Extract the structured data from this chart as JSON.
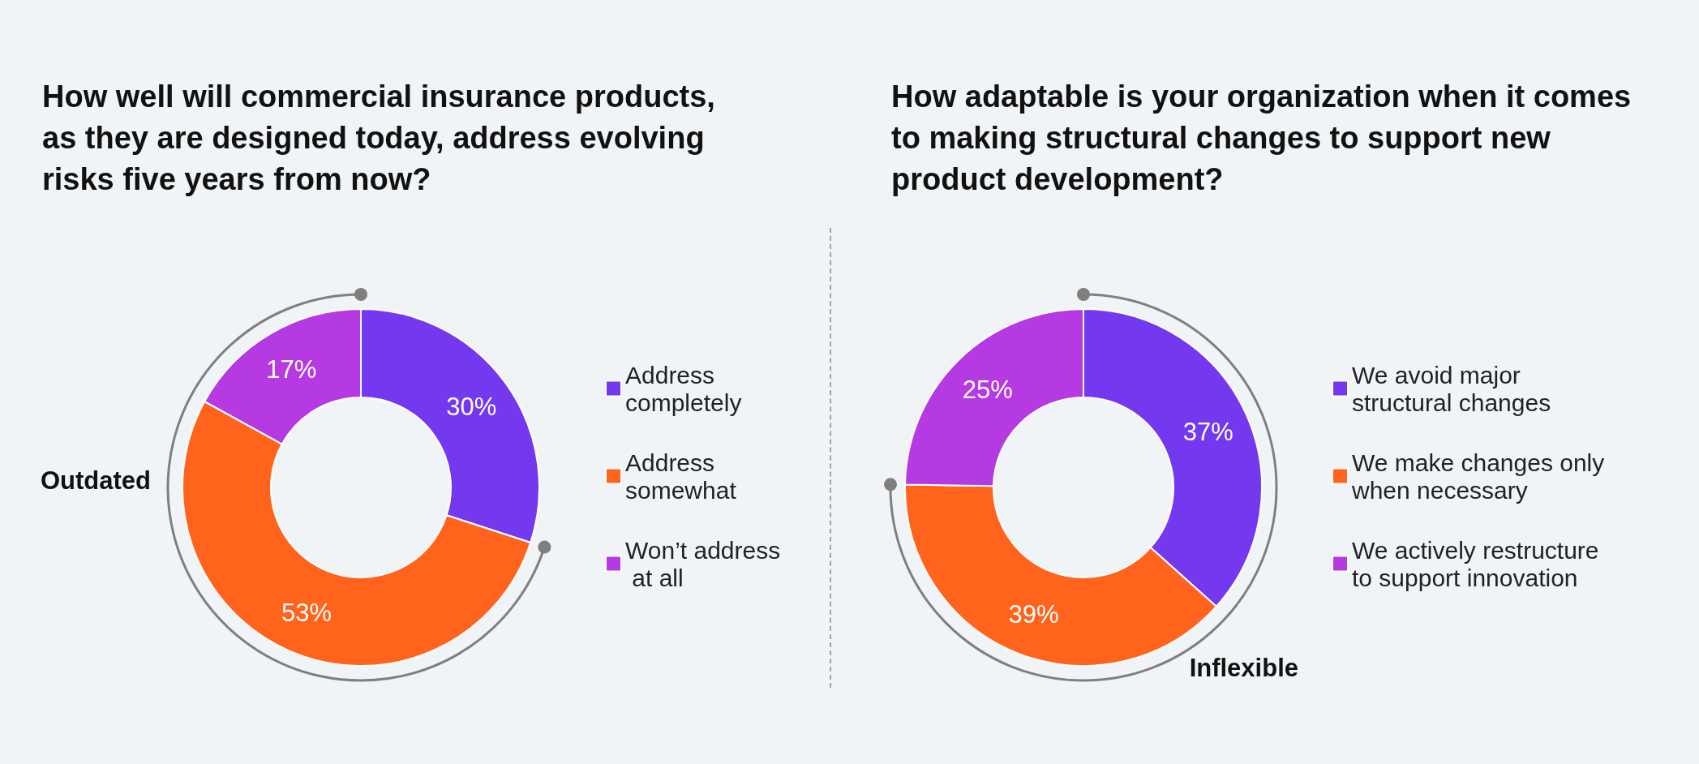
{
  "chart_data": [
    {
      "type": "donut",
      "title": "How well will commercial insurance products, as they are designed today, address evolving risks five years from now?",
      "categories": [
        "Address completely",
        "Address somewhat",
        "Won’t address at all"
      ],
      "values": [
        30,
        53,
        17
      ],
      "colors": [
        "#7438ee",
        "#ff631c",
        "#b53ae2"
      ],
      "value_labels": [
        "30%",
        "53%",
        "17%"
      ],
      "legend": "right",
      "annotations": [
        "Outdated"
      ]
    },
    {
      "type": "donut",
      "title": "How adaptable is your organization when it comes to making structural changes to support new product development?",
      "categories": [
        "We avoid major structural changes",
        "We make changes only when necessary",
        "We actively restructure to support innovation"
      ],
      "values": [
        37,
        39,
        25
      ],
      "colors": [
        "#7438ee",
        "#ff631c",
        "#b53ae2"
      ],
      "value_labels": [
        "37%",
        "39%",
        "25%"
      ],
      "legend": "right",
      "annotations": [
        "Inflexible"
      ]
    }
  ]
}
